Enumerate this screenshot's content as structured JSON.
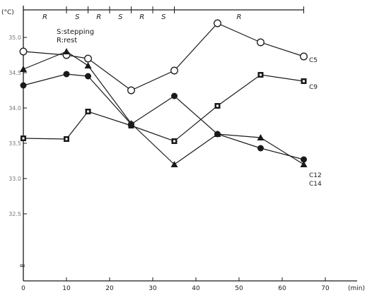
{
  "chart_data": {
    "type": "line",
    "ylabel": "(°C)",
    "xlabel": "(min)",
    "xlim": [
      0,
      75
    ],
    "ylim": [
      31.0,
      36.0
    ],
    "yaxis_break": true,
    "x_ticks": [
      "0",
      "10",
      "20",
      "30",
      "40",
      "50",
      "60",
      "70"
    ],
    "y_ticks": [
      "35.0",
      "34.5",
      "34.0",
      "33.5",
      "33.0",
      "32.5"
    ],
    "phases": [
      "R",
      "S",
      "R",
      "S",
      "R",
      "S",
      "R"
    ],
    "legend": [
      "S:stepping",
      "R:rest"
    ],
    "series": [
      {
        "name": "C5",
        "marker": "open-circle",
        "x": [
          0,
          10,
          15,
          25,
          35,
          45,
          55,
          65
        ],
        "y": [
          34.8,
          34.75,
          34.7,
          34.25,
          34.53,
          35.2,
          34.93,
          34.73
        ]
      },
      {
        "name": "C9",
        "marker": "filled-square",
        "x": [
          0,
          10,
          15,
          25,
          35,
          45,
          55,
          65
        ],
        "y": [
          33.57,
          33.56,
          33.95,
          33.75,
          33.53,
          34.03,
          34.47,
          34.38
        ]
      },
      {
        "name": "C12",
        "marker": "filled-circle",
        "x": [
          0,
          10,
          15,
          25,
          35,
          45,
          55,
          65
        ],
        "y": [
          34.32,
          34.48,
          34.45,
          33.77,
          34.17,
          33.63,
          33.43,
          33.27
        ]
      },
      {
        "name": "C14",
        "marker": "filled-triangle",
        "x": [
          0,
          10,
          15,
          25,
          35,
          45,
          55,
          65
        ],
        "y": [
          34.55,
          34.8,
          34.6,
          33.78,
          33.2,
          33.63,
          33.58,
          33.2
        ]
      }
    ],
    "series_label_text": [
      "C5",
      "C9",
      "C12",
      "C14"
    ]
  }
}
